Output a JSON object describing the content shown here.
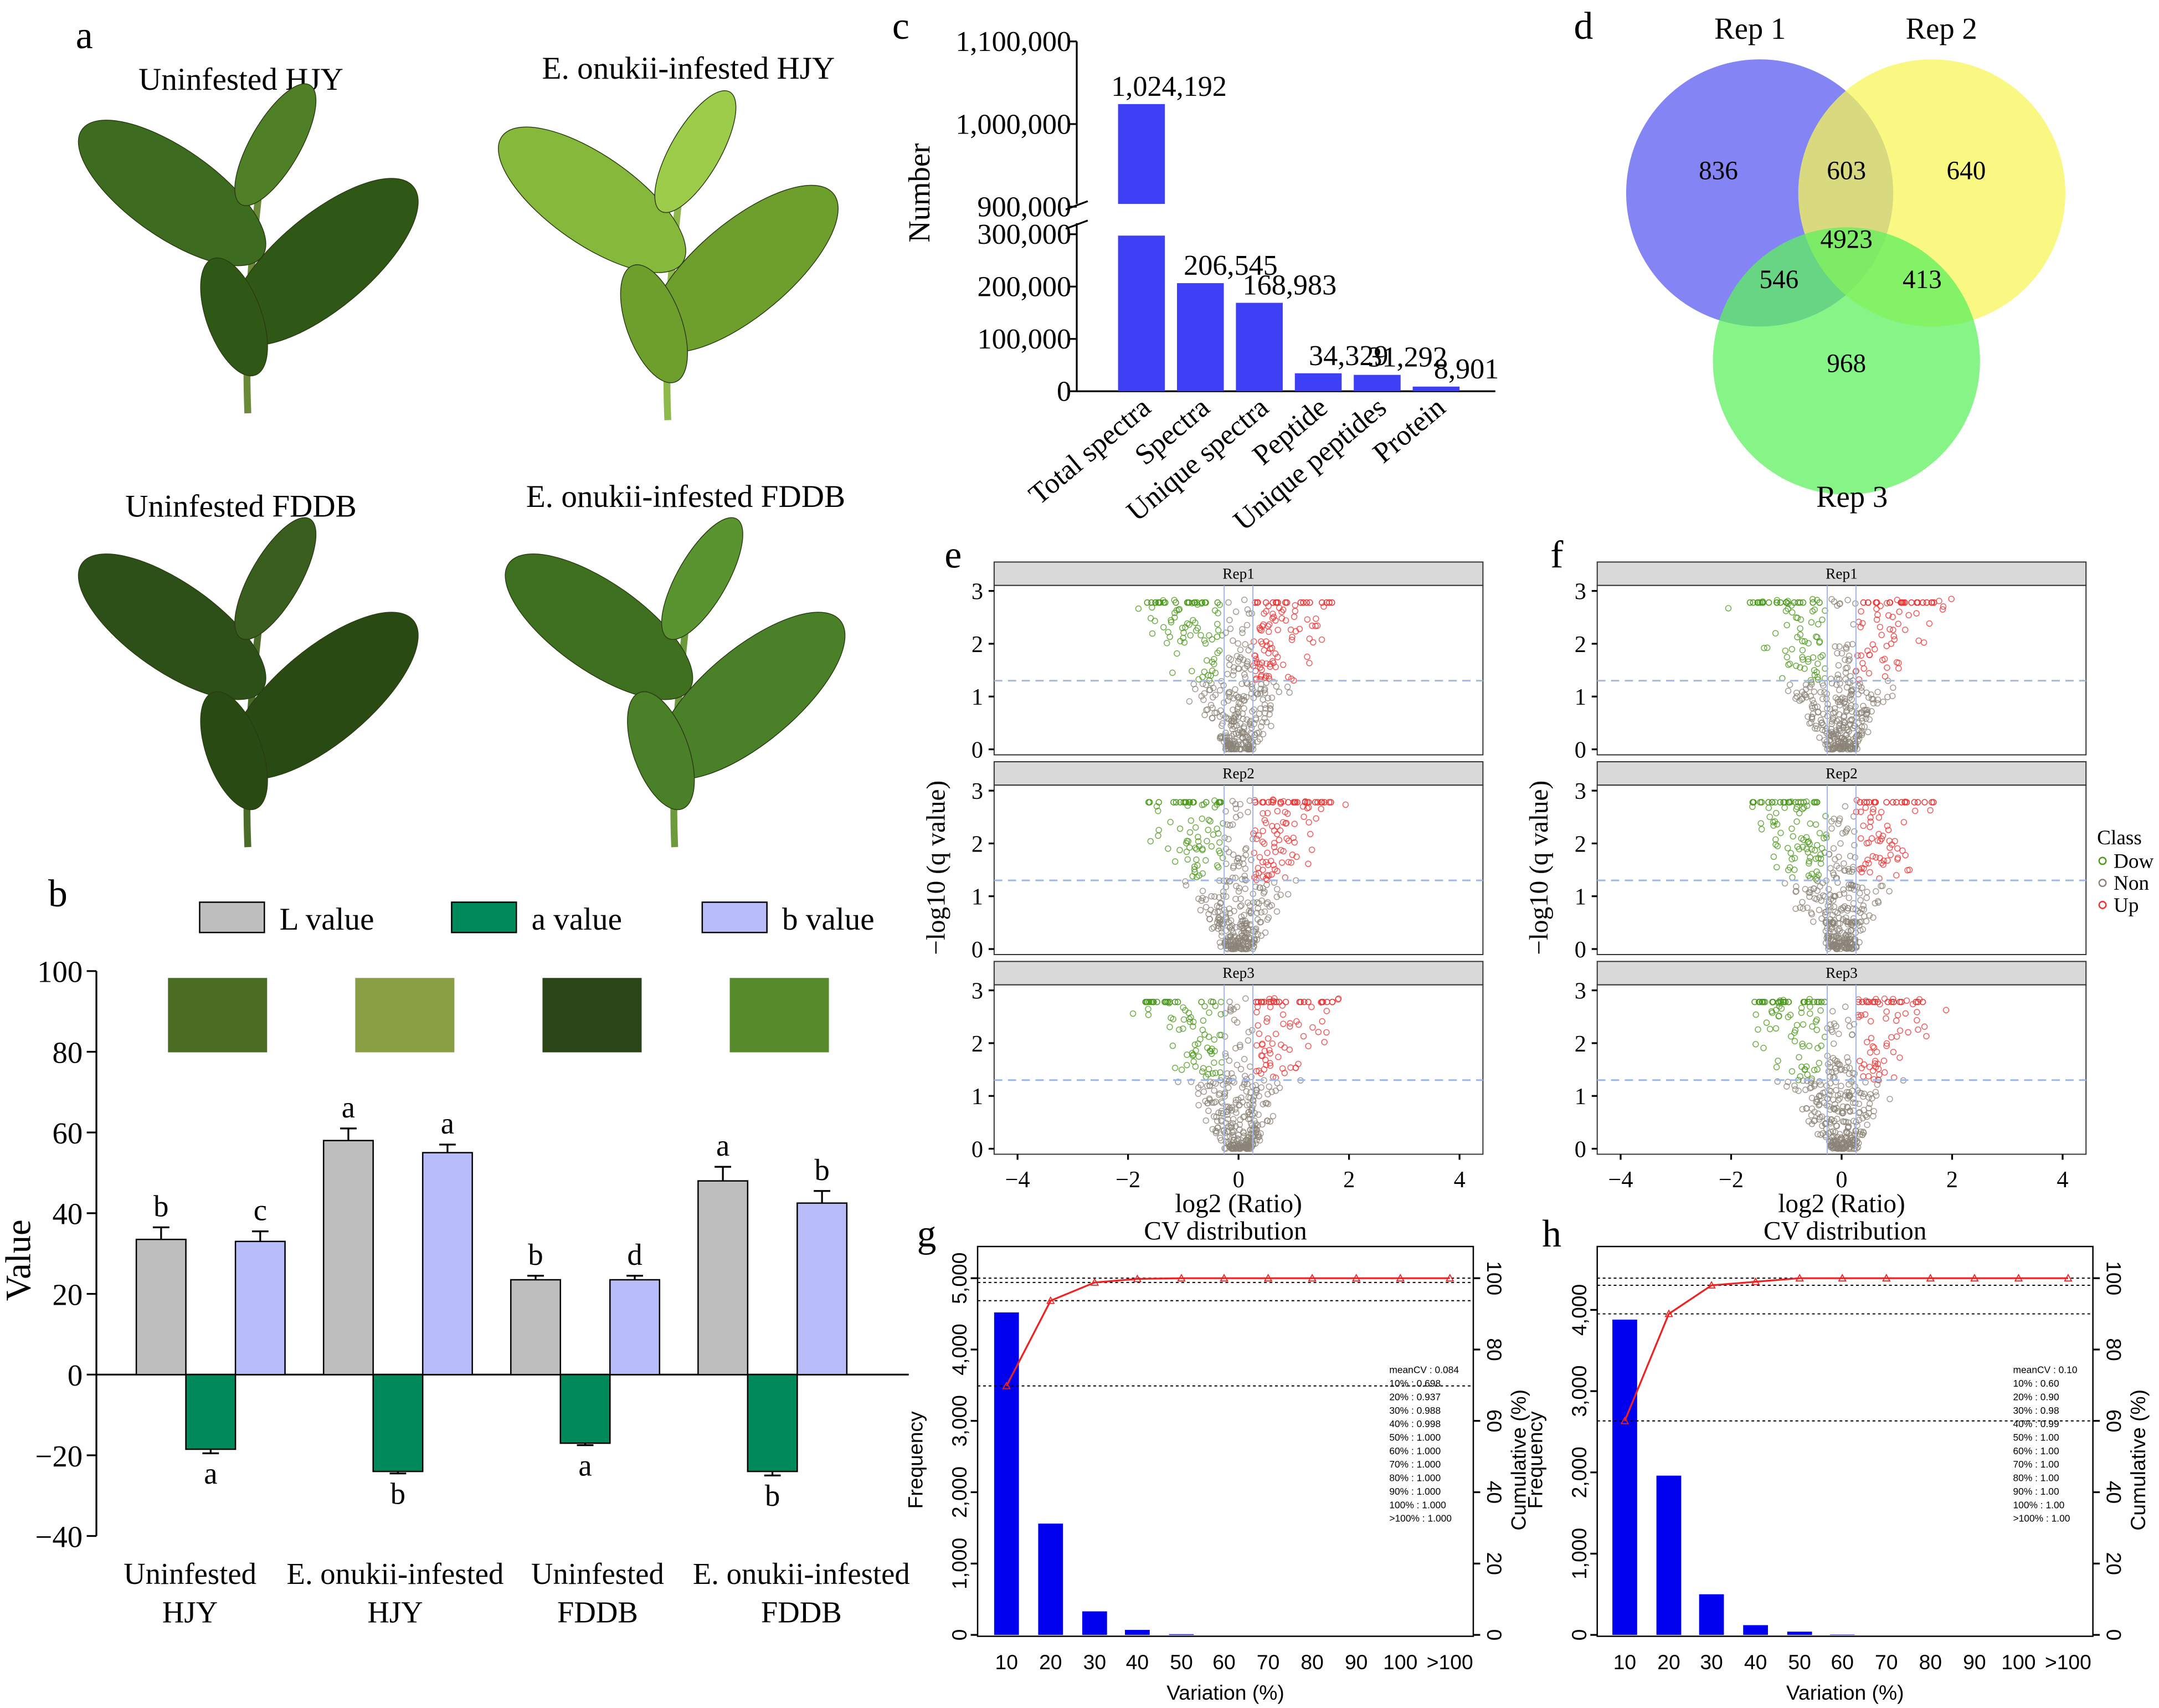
{
  "panels": {
    "a": {
      "letter": "a",
      "captions": [
        "Uninfested HJY",
        "E. onukii-infested HJY",
        "Uninfested FDDB",
        "E. onukii-infested FDDB"
      ]
    },
    "b": {
      "letter": "b"
    },
    "c": {
      "letter": "c"
    },
    "d": {
      "letter": "d"
    },
    "e": {
      "letter": "e"
    },
    "f": {
      "letter": "f"
    },
    "g": {
      "letter": "g"
    },
    "h": {
      "letter": "h"
    }
  },
  "chart_data": [
    {
      "id": "b",
      "type": "bar",
      "ylabel": "Value",
      "ylim": [
        -40,
        100
      ],
      "yticks": [
        -40,
        -20,
        0,
        20,
        40,
        60,
        80,
        100
      ],
      "categories": [
        [
          "Uninfested",
          "HJY"
        ],
        [
          "E. onukii-infested",
          "HJY"
        ],
        [
          "Uninfested",
          "FDDB"
        ],
        [
          "E. onukii-infested",
          "FDDB"
        ]
      ],
      "series": [
        {
          "name": "L value",
          "color": "#bebebe",
          "values": [
            33.5,
            58,
            23.5,
            48
          ],
          "errors": [
            3,
            3,
            1,
            3.5
          ],
          "letters": [
            "b",
            "a",
            "b",
            "a"
          ]
        },
        {
          "name": "a value",
          "color": "#00895a",
          "values": [
            -18.5,
            -24,
            -17,
            -24
          ],
          "errors": [
            1,
            0.5,
            0.5,
            1
          ],
          "letters": [
            "a",
            "b",
            "a",
            "b"
          ]
        },
        {
          "name": "b value",
          "color": "#b8bdfa",
          "values": [
            33,
            55,
            23.5,
            42.5
          ],
          "errors": [
            2.5,
            2,
            1,
            3
          ],
          "letters": [
            "c",
            "a",
            "d",
            "b"
          ]
        }
      ],
      "swatch_colors": [
        "#4a6b22",
        "#8a9e44",
        "#2b4418",
        "#578a2a"
      ]
    },
    {
      "id": "c",
      "type": "bar",
      "ylabel": "Number",
      "broken_axis": true,
      "categories": [
        "Total spectra",
        "Spectra",
        "Unique spectra",
        "Peptide",
        "Unique peptides",
        "Protein"
      ],
      "values": [
        1024192,
        206545,
        168983,
        34329,
        31292,
        8901
      ],
      "labels": [
        "1,024,192",
        "206,545",
        "168,983",
        "34,329",
        "31,292",
        "8,901"
      ],
      "lower_ylim": [
        0,
        300000
      ],
      "lower_ticks": [
        "0",
        "100,000",
        "200,000",
        "300,000"
      ],
      "upper_ylim": [
        900000,
        1100000
      ],
      "upper_ticks": [
        "900,000",
        "1,000,000",
        "1,100,000"
      ],
      "color": "#3f3ff5"
    },
    {
      "id": "d",
      "type": "venn",
      "sets": [
        {
          "name": "Rep 1",
          "color": "#5b5bf0"
        },
        {
          "name": "Rep 2",
          "color": "#f5f55a"
        },
        {
          "name": "Rep 3",
          "color": "#5ef05e"
        }
      ],
      "regions": {
        "only1": "836",
        "only2": "640",
        "only3": "968",
        "r12": "603",
        "r13": "546",
        "r23": "413",
        "all": "4923"
      }
    },
    {
      "id": "e",
      "type": "scatter",
      "subtype": "volcano",
      "facets": [
        "Rep1",
        "Rep2",
        "Rep3"
      ],
      "xlabel": "log2 (Ratio)",
      "ylabel": "−log10 (q value)",
      "xlim": [
        -4.3,
        4.3
      ],
      "ylim": [
        0,
        3
      ],
      "xticks": [
        "−4",
        "−2",
        "0",
        "2",
        "4"
      ],
      "yticks": [
        "0",
        "1",
        "2",
        "3"
      ],
      "threshold_y": 1.3,
      "classes": {
        "Down": "#4c9a1c",
        "Non": "#8b8378",
        "Up": "#ee3333"
      }
    },
    {
      "id": "f",
      "type": "scatter",
      "subtype": "volcano",
      "facets": [
        "Rep1",
        "Rep2",
        "Rep3"
      ],
      "xlabel": "log2 (Ratio)",
      "ylabel": "−log10 (q value)",
      "xlim": [
        -4.3,
        4.3
      ],
      "ylim": [
        0,
        3
      ],
      "xticks": [
        "−4",
        "−2",
        "0",
        "2",
        "4"
      ],
      "yticks": [
        "0",
        "1",
        "2",
        "3"
      ],
      "threshold_y": 1.3,
      "legend": {
        "title": "Class",
        "entries": [
          "Dow",
          "Non",
          "Up"
        ],
        "placement": "right"
      }
    },
    {
      "id": "g",
      "type": "bar",
      "title": "CV distribution",
      "xlabel": "Variation (%)",
      "ylabel": "Frequency",
      "y2label": "Cumulative (%)",
      "categories": [
        "10",
        "20",
        "30",
        "40",
        "50",
        "60",
        "70",
        "80",
        "90",
        "100",
        ">100"
      ],
      "values": [
        4520,
        1560,
        330,
        70,
        10,
        0,
        0,
        0,
        0,
        0,
        0
      ],
      "cumulative": [
        69.8,
        93.7,
        98.8,
        99.8,
        100,
        100,
        100,
        100,
        100,
        100,
        100
      ],
      "yticks": [
        "0",
        "1,000",
        "2,000",
        "3,000",
        "4,000",
        "5,000"
      ],
      "ymax": 5000,
      "y2ticks": [
        "0",
        "20",
        "40",
        "60",
        "80",
        "100"
      ],
      "stats": [
        "meanCV : 0.084",
        "10% : 0.698",
        "20% : 0.937",
        "30% : 0.988",
        "40% : 0.998",
        "50% : 1.000",
        "60% : 1.000",
        "70% : 1.000",
        "80% : 1.000",
        "90% : 1.000",
        "100% : 1.000",
        ">100% : 1.000"
      ]
    },
    {
      "id": "h",
      "type": "bar",
      "title": "CV distribution",
      "xlabel": "Variation (%)",
      "ylabel": "Frequency",
      "y2label": "Cumulative (%)",
      "categories": [
        "10",
        "20",
        "30",
        "40",
        "50",
        "60",
        "70",
        "80",
        "90",
        "100",
        ">100"
      ],
      "values": [
        3880,
        1960,
        500,
        120,
        40,
        5,
        0,
        0,
        0,
        0,
        0
      ],
      "cumulative": [
        60,
        90,
        98,
        99,
        100,
        100,
        100,
        100,
        100,
        100,
        100
      ],
      "yticks": [
        "0",
        "1,000",
        "2,000",
        "3,000",
        "4,000"
      ],
      "ymax": 4390,
      "y2ticks": [
        "0",
        "20",
        "40",
        "60",
        "80",
        "100"
      ],
      "stats": [
        "meanCV : 0.10",
        "10% : 0.60",
        "20% : 0.90",
        "30% : 0.98",
        "40% : 0.99",
        "50% : 1.00",
        "60% : 1.00",
        "70% : 1.00",
        "80% : 1.00",
        "90% : 1.00",
        "100% : 1.00",
        ">100% : 1.00"
      ]
    }
  ]
}
